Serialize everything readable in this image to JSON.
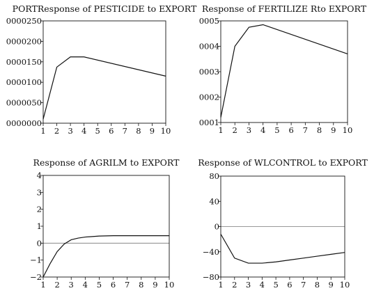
{
  "chart_data": [
    {
      "type": "line",
      "title": "PORTResponse of PESTICIDE to EXPORT",
      "x_ticks": [
        "1",
        "2",
        "3",
        "4",
        "5",
        "6",
        "7",
        "8",
        "9",
        "10"
      ],
      "y_ticks": [
        "0000000",
        "0000050",
        "0000100",
        "0000150",
        "0000200",
        "0000250"
      ],
      "ylim": [
        0,
        250
      ],
      "zero_line": false,
      "series": [
        {
          "x": [
            1,
            2,
            3,
            4,
            10
          ],
          "values": [
            10,
            137,
            162,
            162,
            115
          ]
        }
      ]
    },
    {
      "type": "line",
      "title": "Response of FERTILIZE Rto EXPORT",
      "x_ticks": [
        "1",
        "2",
        "3",
        "4",
        "5",
        "6",
        "7",
        "8",
        "9",
        "10"
      ],
      "y_ticks": [
        "0001",
        "0002",
        "0003",
        "0004",
        "0005"
      ],
      "ylim": [
        1,
        5
      ],
      "zero_line": false,
      "series": [
        {
          "x": [
            1,
            2,
            3,
            4,
            10
          ],
          "values": [
            1.2,
            4.0,
            4.75,
            4.85,
            3.7
          ]
        }
      ]
    },
    {
      "type": "line",
      "title": "Response of AGRILM to EXPORT",
      "x_ticks": [
        "1",
        "2",
        "3",
        "4",
        "5",
        "6",
        "7",
        "8",
        "9",
        "10"
      ],
      "y_ticks": [
        "−2",
        "−1",
        "0",
        "1",
        "2",
        "3",
        "4"
      ],
      "ylim": [
        -2,
        4
      ],
      "zero_line": true,
      "series": [
        {
          "x": [
            1,
            1.5,
            2,
            2.5,
            3,
            3.5,
            4,
            5,
            6,
            7,
            8,
            9,
            10
          ],
          "values": [
            -2.0,
            -1.2,
            -0.5,
            -0.05,
            0.2,
            0.3,
            0.36,
            0.42,
            0.44,
            0.44,
            0.44,
            0.44,
            0.44
          ]
        }
      ]
    },
    {
      "type": "line",
      "title": "Response of WLCONTROL to EXPORT",
      "x_ticks": [
        "1",
        "2",
        "3",
        "4",
        "5",
        "6",
        "7",
        "8",
        "9",
        "10"
      ],
      "y_ticks": [
        "−80",
        "−40",
        "0",
        "40",
        "80"
      ],
      "ylim": [
        -80,
        80
      ],
      "zero_line": true,
      "series": [
        {
          "x": [
            1,
            2,
            3,
            4,
            5,
            6,
            7,
            8,
            9,
            10
          ],
          "values": [
            -12,
            -50,
            -58,
            -58,
            -56,
            -53,
            -50,
            -47,
            -44,
            -41
          ]
        }
      ]
    }
  ]
}
